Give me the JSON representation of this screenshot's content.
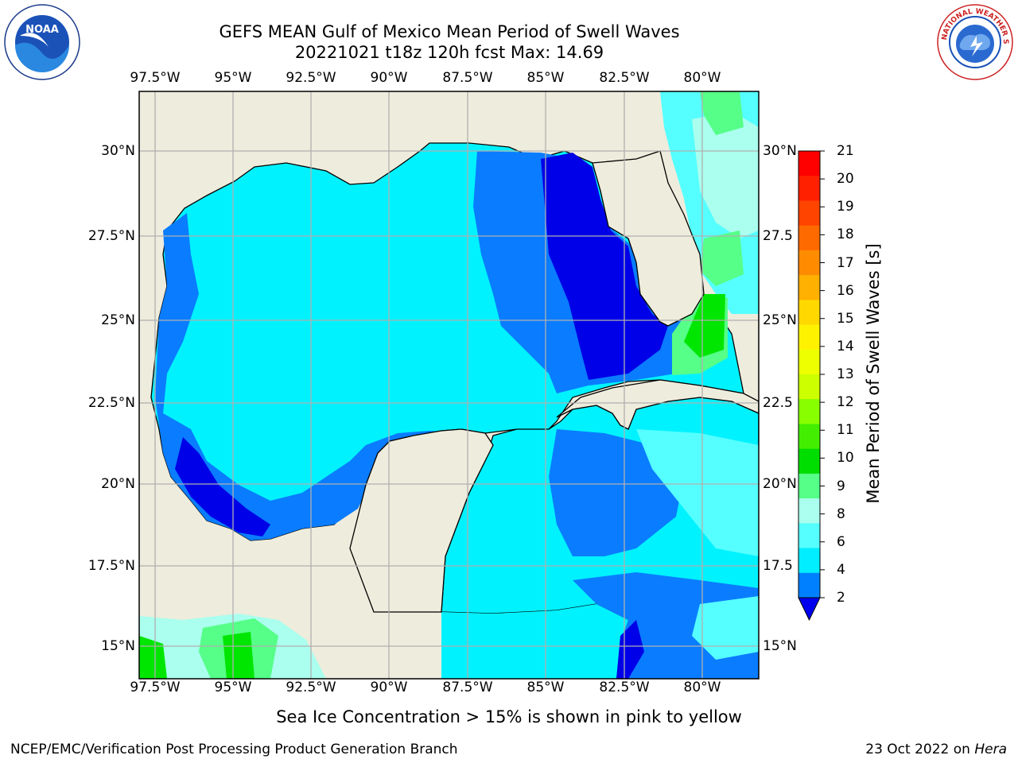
{
  "title": {
    "line1": "GEFS MEAN Gulf of Mexico Mean Period of Swell Waves",
    "line2": "20221021 t18z 120h fcst   Max: 14.69"
  },
  "map": {
    "lon_ticks": [
      "97.5°W",
      "95°W",
      "92.5°W",
      "90°W",
      "87.5°W",
      "85°W",
      "82.5°W",
      "80°W"
    ],
    "lat_ticks_left": [
      "30°N",
      "27.5°N",
      "25°N",
      "22.5°N",
      "20°N",
      "17.5°N",
      "15°N"
    ],
    "lat_ticks_right": [
      "30°N",
      "27.5",
      "25°N",
      "22.5",
      "20°N",
      "17.5",
      "15°N"
    ],
    "land_color": "#eeecdc",
    "grid_color": "#b0b0b0"
  },
  "colorbar": {
    "title": "Mean Period of Swell Waves [s]",
    "labels": [
      "21",
      "20",
      "19",
      "18",
      "17",
      "16",
      "15",
      "14",
      "13",
      "12",
      "11",
      "10",
      "9",
      "8",
      "6",
      "4",
      "2"
    ],
    "colors": [
      "#ff0000",
      "#ff2000",
      "#ff4400",
      "#ff6a00",
      "#ff8c00",
      "#ffb000",
      "#ffd800",
      "#fff200",
      "#eeff00",
      "#ccff00",
      "#88ff00",
      "#44ee00",
      "#00dd00",
      "#55ff88",
      "#aaffee",
      "#55ffff",
      "#00eeff",
      "#0080ff"
    ],
    "extend_color": "#0000ee"
  },
  "note": "Sea Ice Concentration > 15% is shown in pink to yellow",
  "footer": {
    "left": "NCEP/EMC/Verification Post Processing Product Generation Branch",
    "date": "23 Oct 2022 on ",
    "machine": "Hera"
  },
  "logos": {
    "noaa": "NOAA",
    "nws": "NATIONAL WEATHER SERVICE"
  }
}
